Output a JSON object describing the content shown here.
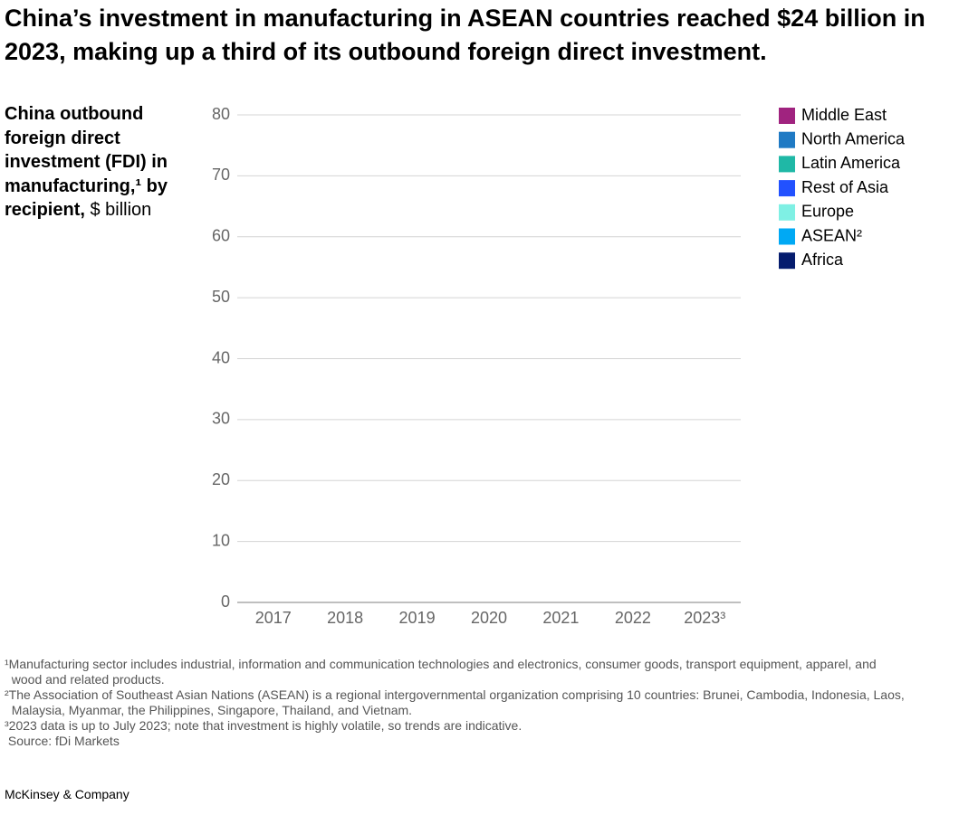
{
  "chart_data": {
    "type": "stacked-bar",
    "title": "China’s investment in manufacturing in ASEAN countries reached $24 billion in 2023, making up a third of its outbound foreign direct investment.",
    "y_label": "China outbound foreign direct investment (FDI) in manufacturing,¹ by recipient,",
    "y_unit": "$ billion",
    "categories": [
      "2017",
      "2018",
      "2019",
      "2020",
      "2021",
      "2022",
      "2023³"
    ],
    "series": [
      {
        "name": "Middle East",
        "color": "#a0237f",
        "values": [
          null,
          null,
          null,
          null,
          null,
          null,
          null
        ]
      },
      {
        "name": "North America",
        "color": "#1f7ac4",
        "values": [
          null,
          null,
          null,
          null,
          null,
          null,
          null
        ]
      },
      {
        "name": "Latin America",
        "color": "#1fb8a6",
        "values": [
          null,
          null,
          null,
          null,
          null,
          null,
          null
        ]
      },
      {
        "name": "Rest of Asia",
        "color": "#2251ff",
        "values": [
          null,
          null,
          null,
          null,
          null,
          null,
          null
        ]
      },
      {
        "name": "Europe",
        "color": "#7ff0e4",
        "values": [
          null,
          null,
          null,
          null,
          null,
          null,
          null
        ]
      },
      {
        "name": "ASEAN²",
        "color": "#00a9f4",
        "values": [
          null,
          null,
          null,
          null,
          null,
          null,
          null
        ]
      },
      {
        "name": "Africa",
        "color": "#051c6e",
        "values": [
          null,
          null,
          null,
          null,
          null,
          null,
          null
        ]
      }
    ],
    "ylim": [
      0,
      80
    ],
    "yticks": [
      0,
      10,
      20,
      30,
      40,
      50,
      60,
      70,
      80
    ],
    "grid": true,
    "legend": "right",
    "footnotes": [
      "¹Manufacturing sector includes industrial, information and communication technologies and electronics, consumer goods, transport equipment, apparel, and\n  wood and related products.",
      "²The Association of Southeast Asian Nations (ASEAN) is a regional intergovernmental organization comprising 10 countries: Brunei, Cambodia, Indonesia, Laos,\n  Malaysia, Myanmar, the Philippines, Singapore, Thailand, and Vietnam.",
      "³2023 data is up to July 2023; note that investment is highly volatile, so trends are indicative.",
      " Source: fDi Markets"
    ],
    "brand": "McKinsey & Company"
  }
}
